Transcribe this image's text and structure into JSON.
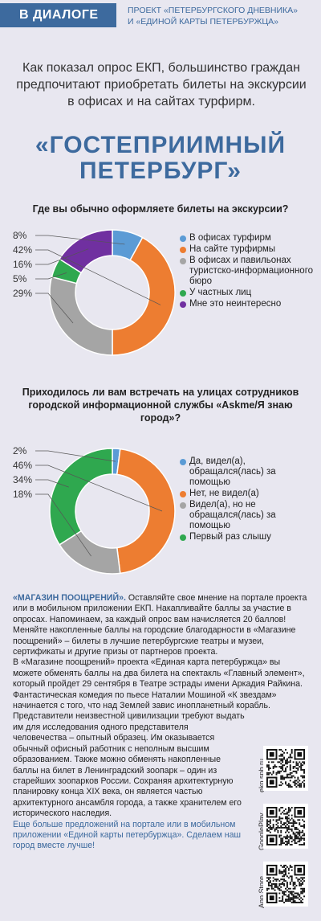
{
  "header": {
    "tag": "В ДИАЛОГЕ",
    "project_line1": "ПРОЕКТ «ПЕТЕРБУРГСКОГО ДНЕВНИКА»",
    "project_line2": "И «ЕДИНОЙ КАРТЫ ПЕТЕРБУРЖЦА»"
  },
  "intro_text": "Как показал опрос ЕКП, большинство граждан предпочитают приобретать билеты на экскурсии в офисах и на сайтах турфирм.",
  "big_title_line1": "«ГОСТЕПРИИМНЫЙ",
  "big_title_line2": "ПЕТЕРБУРГ»",
  "colors": {
    "accent": "#3d6a9e",
    "blue": "#5b9bd5",
    "orange": "#ed7d31",
    "gray": "#a5a5a5",
    "green": "#2fa84f",
    "purple": "#7030a0"
  },
  "chart_data": [
    {
      "type": "pie",
      "title": "Где вы обычно оформляете билеты на экскурсии?",
      "donut": true,
      "legend_position": "right",
      "slices": [
        {
          "label": "В офисах турфирм",
          "value": 8,
          "value_label": "8%",
          "color": "#5b9bd5"
        },
        {
          "label": "На сайте турфирмы",
          "value": 42,
          "value_label": "42%",
          "color": "#ed7d31"
        },
        {
          "label": "В офисах и павильонах туристско-информационного бюро",
          "value": 29,
          "value_label": "29%",
          "color": "#a5a5a5"
        },
        {
          "label": "У частных лиц",
          "value": 5,
          "value_label": "5%",
          "color": "#2fa84f"
        },
        {
          "label": "Мне это неинтересно",
          "value": 16,
          "value_label": "16%",
          "color": "#7030a0"
        }
      ],
      "percent_labels_order": [
        "8%",
        "42%",
        "16%",
        "5%",
        "29%"
      ]
    },
    {
      "type": "pie",
      "title": "Приходилось ли вам встречать на улицах сотрудников городской информационной службы «Askme/Я знаю город»?",
      "donut": true,
      "legend_position": "right",
      "slices": [
        {
          "label": "Да, видел(а), обращался(лась) за помощью",
          "value": 2,
          "value_label": "2%",
          "color": "#5b9bd5"
        },
        {
          "label": "Нет, не видел(а)",
          "value": 46,
          "value_label": "46%",
          "color": "#ed7d31"
        },
        {
          "label": "Видел(а), но не обращался(лась) за помощью",
          "value": 18,
          "value_label": "18%",
          "color": "#a5a5a5"
        },
        {
          "label": "Первый раз слышу",
          "value": 34,
          "value_label": "34%",
          "color": "#2fa84f"
        }
      ],
      "percent_labels_order": [
        "2%",
        "46%",
        "34%",
        "18%"
      ]
    }
  ],
  "legend1": [
    "В офисах турфирм",
    "На сайте турфирмы",
    "В офисах и павильонах туристско-информационного бюро",
    "У частных лиц",
    "Мне это неинтересно"
  ],
  "legend2": [
    "Да, видел(а), обращался(лась) за помощью",
    "Нет, не видел(а)",
    "Видел(а), но не обращался(лась) за помощью",
    "Первый раз слышу"
  ],
  "bottom": {
    "heading": "«МАГАЗИН ПООЩРЕНИЙ».",
    "p1": " Оставляйте свое мнение на портале проекта или в мобильном приложении ЕКП. Накапливайте баллы за участие в опросах. Напоминаем, за каждый опрос вам начисляется 20 баллов! Меняйте накопленные баллы на городские благодарности в «Магазине поощрений» – билеты в лучшие петербургские театры и музеи, сертификаты и другие призы от партнеров проекта.",
    "p2": "В «Магазине поощрений» проекта «Единая карта петербуржца» вы можете обменять баллы на два билета на спектакль «Главный элемент», который пройдет 29 сентября в Театре эстрады имени Аркадия Райкина. Фантастическая комедия по пьесе Наталии Мошиной «К звездам» начинается с того, что над Землей завис инопланетный корабль. Представители неизвестной цивилизации требуют выдать",
    "p3": "им для исследования одного представителя человечества – опытный образец. Им оказывается обычный офисный работник с неполным высшим образованием. Также можно обменять накопленные баллы на билет в Ленинградский зоопарк – один из старейших зоопарков России. Сохраняя архитектурную планировку конца XIX века, он является частью архитектурного ансамбля города, а также хранителем его исторического наследия.",
    "p4": "Еще больше предложений на портале или в мобильном приложении «Единой карты петербуржца». Сделаем наш город вместе лучше!"
  },
  "qr": [
    {
      "label": "ekp.spb.ru",
      "icon": "qr-code-icon"
    },
    {
      "label": "GooglePlay",
      "icon": "qr-code-icon"
    },
    {
      "label": "App Store",
      "icon": "qr-code-icon"
    }
  ]
}
